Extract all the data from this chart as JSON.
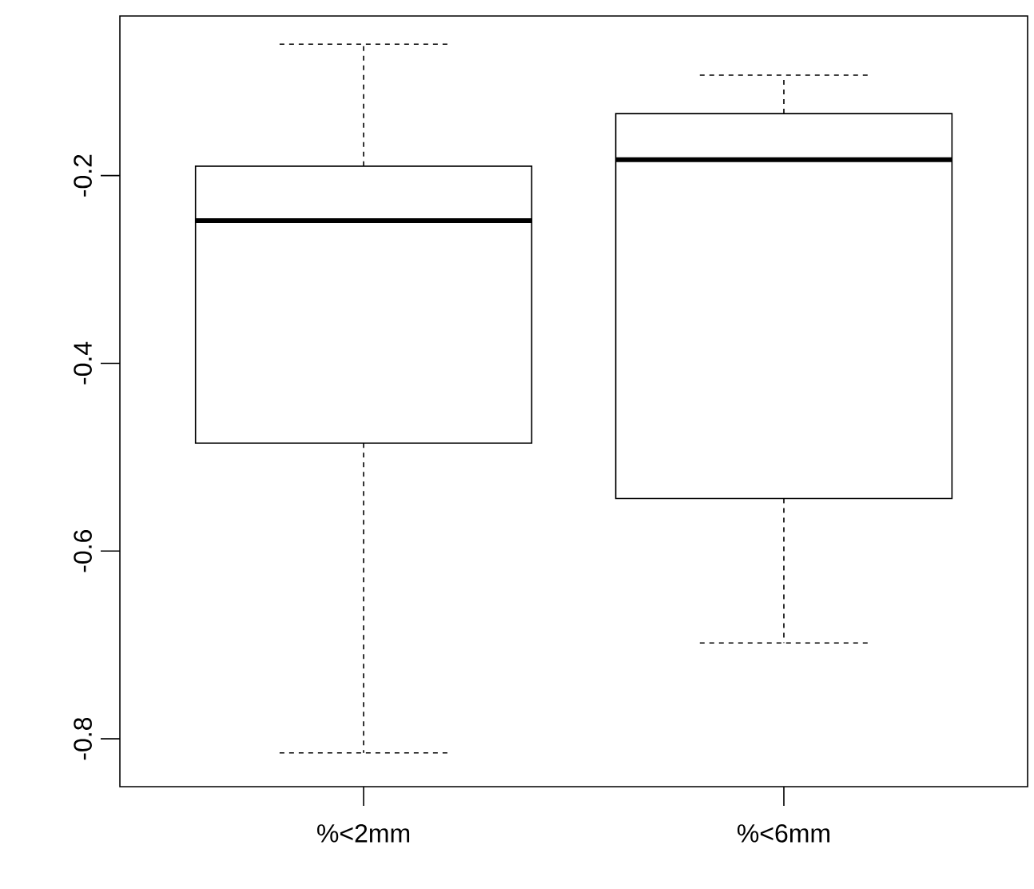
{
  "chart_data": {
    "type": "box",
    "categories": [
      "%<2mm",
      "%<6mm"
    ],
    "boxes": [
      {
        "low": -0.815,
        "q1": -0.485,
        "median": -0.248,
        "q3": -0.19,
        "high": -0.06
      },
      {
        "low": -0.698,
        "q1": -0.544,
        "median": -0.183,
        "q3": -0.134,
        "high": -0.093
      }
    ],
    "ylim": [
      -0.851,
      -0.03
    ],
    "yticks": [
      -0.8,
      -0.6,
      -0.4,
      -0.2
    ]
  }
}
